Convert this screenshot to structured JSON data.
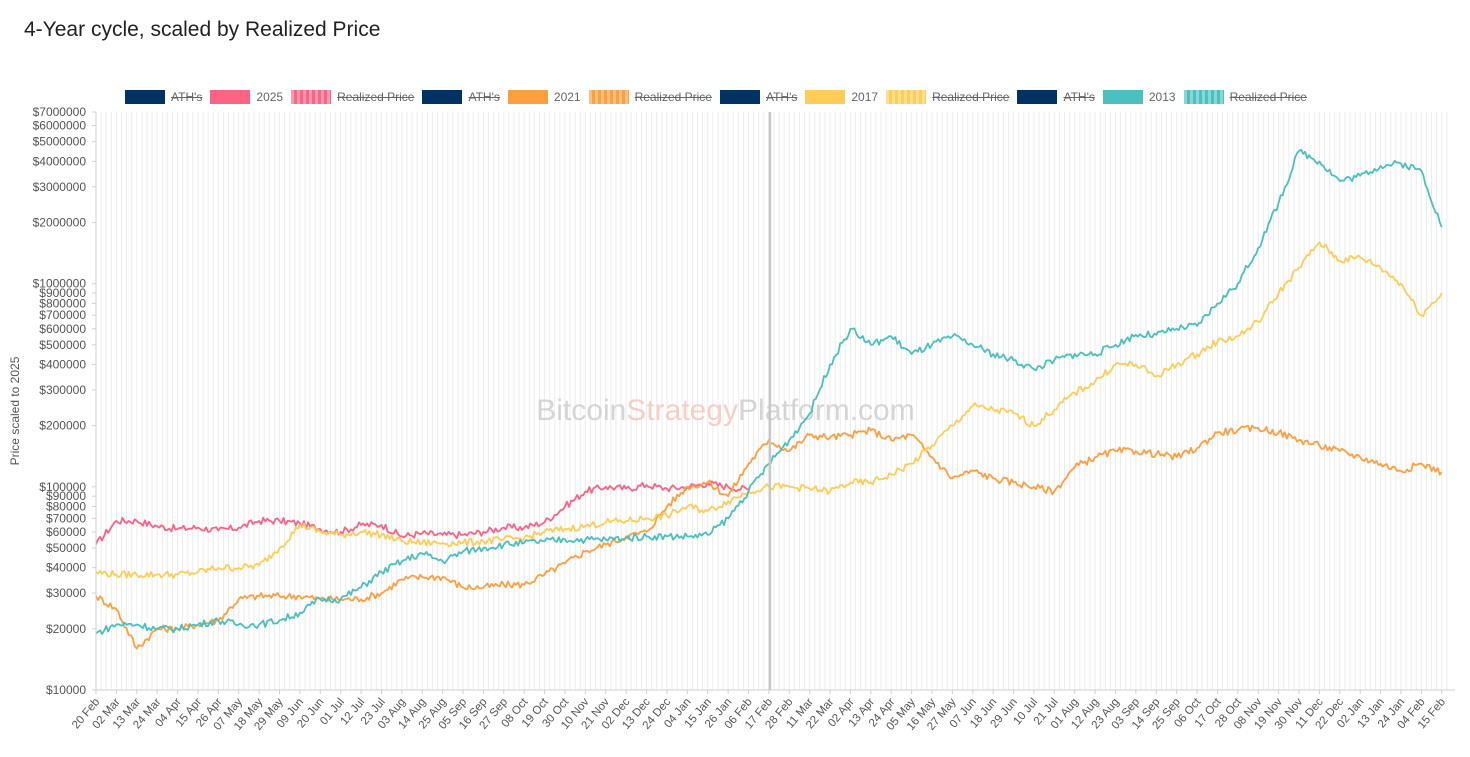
{
  "title": "4-Year cycle, scaled by Realized Price",
  "watermark": {
    "part1": "Bitcoin",
    "part2": "Strategy",
    "part3": "Platform.com",
    "colors": [
      "#c8c8c8",
      "#f3c1b3",
      "#c8c8c8"
    ]
  },
  "chart_data": {
    "type": "line",
    "title": "4-Year cycle, scaled by Realized Price",
    "ylabel": "Price scaled to 2025",
    "y_scale": "log",
    "ylim": [
      10000,
      7000000
    ],
    "grid": "vertical",
    "legend_position": "top",
    "y_ticks": [
      {
        "value": 10000,
        "label": "$10000"
      },
      {
        "value": 20000,
        "label": "$20000"
      },
      {
        "value": 30000,
        "label": "$30000"
      },
      {
        "value": 40000,
        "label": "$40000"
      },
      {
        "value": 50000,
        "label": "$50000"
      },
      {
        "value": 60000,
        "label": "$60000"
      },
      {
        "value": 70000,
        "label": "$70000"
      },
      {
        "value": 80000,
        "label": "$80000"
      },
      {
        "value": 90000,
        "label": "$90000"
      },
      {
        "value": 100000,
        "label": "$100000"
      },
      {
        "value": 200000,
        "label": "$200000"
      },
      {
        "value": 300000,
        "label": "$300000"
      },
      {
        "value": 400000,
        "label": "$400000"
      },
      {
        "value": 500000,
        "label": "$500000"
      },
      {
        "value": 600000,
        "label": "$600000"
      },
      {
        "value": 700000,
        "label": "$700000"
      },
      {
        "value": 800000,
        "label": "$800000"
      },
      {
        "value": 900000,
        "label": "$900000"
      },
      {
        "value": 1000000,
        "label": "$1000000"
      },
      {
        "value": 2000000,
        "label": "$2000000"
      },
      {
        "value": 3000000,
        "label": "$3000000"
      },
      {
        "value": 4000000,
        "label": "$4000000"
      },
      {
        "value": 5000000,
        "label": "$5000000"
      },
      {
        "value": 6000000,
        "label": "$6000000"
      },
      {
        "value": 7000000,
        "label": "$7000000"
      }
    ],
    "categories": [
      "20 Feb",
      "02 Mar",
      "13 Mar",
      "24 Mar",
      "04 Apr",
      "15 Apr",
      "26 Apr",
      "07 May",
      "18 May",
      "29 May",
      "09 Jun",
      "20 Jun",
      "01 Jul",
      "12 Jul",
      "23 Jul",
      "03 Aug",
      "14 Aug",
      "25 Aug",
      "05 Sep",
      "16 Sep",
      "27 Sep",
      "08 Oct",
      "19 Oct",
      "30 Oct",
      "10 Nov",
      "21 Nov",
      "02 Dec",
      "13 Dec",
      "24 Dec",
      "04 Jan",
      "15 Jan",
      "26 Jan",
      "06 Feb",
      "17 Feb",
      "28 Feb",
      "11 Mar",
      "22 Mar",
      "02 Apr",
      "13 Apr",
      "24 Apr",
      "05 May",
      "16 May",
      "27 May",
      "07 Jun",
      "18 Jun",
      "29 Jun",
      "10 Jul",
      "21 Jul",
      "01 Aug",
      "12 Aug",
      "23 Aug",
      "03 Sep",
      "14 Sep",
      "25 Sep",
      "06 Oct",
      "17 Oct",
      "28 Oct",
      "08 Nov",
      "19 Nov",
      "30 Nov",
      "11 Dec",
      "22 Dec",
      "02 Jan",
      "13 Jan",
      "24 Jan",
      "04 Feb",
      "15 Feb"
    ],
    "marker_category": "17 Feb",
    "marker_color": "#c6c6c6",
    "series": [
      {
        "name": "2025",
        "color": "#ff6384",
        "values": [
          52000,
          68000,
          68000,
          64000,
          62000,
          63000,
          61000,
          63000,
          68000,
          68000,
          66000,
          62000,
          60000,
          65000,
          65000,
          57000,
          59000,
          58000,
          58000,
          60000,
          63000,
          63000,
          67000,
          80000,
          95000,
          100000,
          98000,
          102000,
          98000,
          100000,
          104000,
          100000,
          97000,
          null,
          null,
          null,
          null,
          null,
          null,
          null,
          null,
          null,
          null,
          null,
          null,
          null,
          null,
          null,
          null,
          null,
          null,
          null,
          null,
          null,
          null,
          null,
          null,
          null,
          null,
          null,
          null,
          null,
          null,
          null,
          null,
          null,
          null
        ]
      },
      {
        "name": "2021",
        "color": "#ff9f40",
        "values": [
          29000,
          25000,
          16000,
          20000,
          20000,
          21000,
          22000,
          28000,
          29000,
          29000,
          29000,
          28000,
          28000,
          28000,
          30000,
          35000,
          36000,
          36000,
          32000,
          32000,
          33000,
          33000,
          37000,
          42000,
          48000,
          52000,
          57000,
          60000,
          80000,
          100000,
          105000,
          90000,
          130000,
          170000,
          150000,
          180000,
          175000,
          180000,
          190000,
          170000,
          180000,
          140000,
          110000,
          120000,
          110000,
          105000,
          100000,
          95000,
          125000,
          140000,
          150000,
          150000,
          145000,
          140000,
          155000,
          185000,
          190000,
          195000,
          185000,
          170000,
          160000,
          150000,
          140000,
          130000,
          120000,
          130000,
          118000
        ]
      },
      {
        "name": "2017",
        "color": "#ffcd56",
        "values": [
          38000,
          37000,
          37000,
          37000,
          37000,
          38000,
          40000,
          40000,
          41000,
          50000,
          65000,
          60000,
          58000,
          60000,
          58000,
          54000,
          53000,
          53000,
          53000,
          54000,
          55000,
          56000,
          60000,
          62000,
          64000,
          67000,
          68000,
          70000,
          72000,
          80000,
          76000,
          85000,
          95000,
          100000,
          100000,
          98000,
          95000,
          105000,
          105000,
          115000,
          130000,
          160000,
          200000,
          250000,
          240000,
          230000,
          200000,
          240000,
          290000,
          330000,
          400000,
          400000,
          350000,
          400000,
          450000,
          520000,
          550000,
          650000,
          900000,
          1200000,
          1600000,
          1300000,
          1350000,
          1200000,
          1000000,
          700000,
          900000
        ]
      },
      {
        "name": "2013",
        "color": "#4bc0c0",
        "values": [
          19000,
          21000,
          21000,
          20000,
          20000,
          21000,
          22000,
          21000,
          21000,
          22000,
          24000,
          28000,
          28000,
          32000,
          38000,
          43000,
          47000,
          43000,
          48000,
          50000,
          52000,
          53000,
          54000,
          55000,
          55000,
          55000,
          56000,
          57000,
          57000,
          57000,
          58000,
          70000,
          95000,
          130000,
          170000,
          230000,
          400000,
          600000,
          500000,
          550000,
          450000,
          500000,
          550000,
          500000,
          450000,
          420000,
          380000,
          420000,
          450000,
          450000,
          500000,
          560000,
          560000,
          600000,
          620000,
          800000,
          1000000,
          1500000,
          2500000,
          4500000,
          4000000,
          3200000,
          3400000,
          3800000,
          3900000,
          3600000,
          1900000
        ]
      }
    ]
  },
  "legend": [
    {
      "label": "ATH's",
      "color": "#003263",
      "hidden": true,
      "dashed": false
    },
    {
      "label": "2025",
      "color": "#ff6384",
      "hidden": false,
      "dashed": false
    },
    {
      "label": "Realized Price",
      "color": "#ff6384",
      "hidden": true,
      "dashed": true
    },
    {
      "label": "ATH's",
      "color": "#003263",
      "hidden": true,
      "dashed": false
    },
    {
      "label": "2021",
      "color": "#ff9f40",
      "hidden": false,
      "dashed": false
    },
    {
      "label": "Realized Price",
      "color": "#ff9f40",
      "hidden": true,
      "dashed": true
    },
    {
      "label": "ATH's",
      "color": "#003263",
      "hidden": true,
      "dashed": false
    },
    {
      "label": "2017",
      "color": "#ffcd56",
      "hidden": false,
      "dashed": false
    },
    {
      "label": "Realized Price",
      "color": "#ffcd56",
      "hidden": true,
      "dashed": true
    },
    {
      "label": "ATH's",
      "color": "#003263",
      "hidden": true,
      "dashed": false
    },
    {
      "label": "2013",
      "color": "#4bc0c0",
      "hidden": false,
      "dashed": false
    },
    {
      "label": "Realized Price",
      "color": "#4bc0c0",
      "hidden": true,
      "dashed": true
    }
  ]
}
